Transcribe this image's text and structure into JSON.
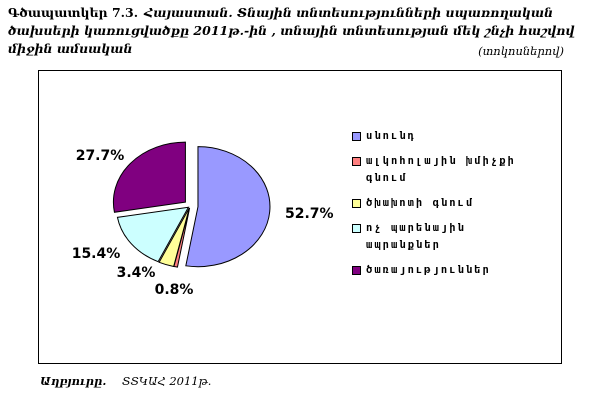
{
  "title": {
    "number": "Գծապատկեր 7.3.",
    "text": "Հայաստան. Տնային տնտեսությունների սպառողական ծախսերի կառուցվածքը 2011թ.-ին , տնային տնտեսության մեկ շնչի հաշվով միջին ամսական"
  },
  "unit_note": "(տոկոսներով)",
  "chart_data": {
    "type": "pie",
    "slices": [
      {
        "label": "սնունդ",
        "value": 52.7,
        "display": "52.7%",
        "color": "#9999ff"
      },
      {
        "label": "ալկոհոլային խմիչքի գնում",
        "value": 0.8,
        "display": "0.8%",
        "color": "#ff8080"
      },
      {
        "label": "ծխախոտի գնում",
        "value": 3.4,
        "display": "3.4%",
        "color": "#ffff99"
      },
      {
        "label": "ոչ պարենային ապրանքներ",
        "value": 15.4,
        "display": "15.4%",
        "color": "#ccffff"
      },
      {
        "label": "ծառայություններ",
        "value": 27.7,
        "display": "27.7%",
        "color": "#800080"
      }
    ],
    "legend_position": "right"
  },
  "source": {
    "label": "Աղբյուրը.",
    "value": "ՏՏԿԱՀ 2011թ."
  }
}
